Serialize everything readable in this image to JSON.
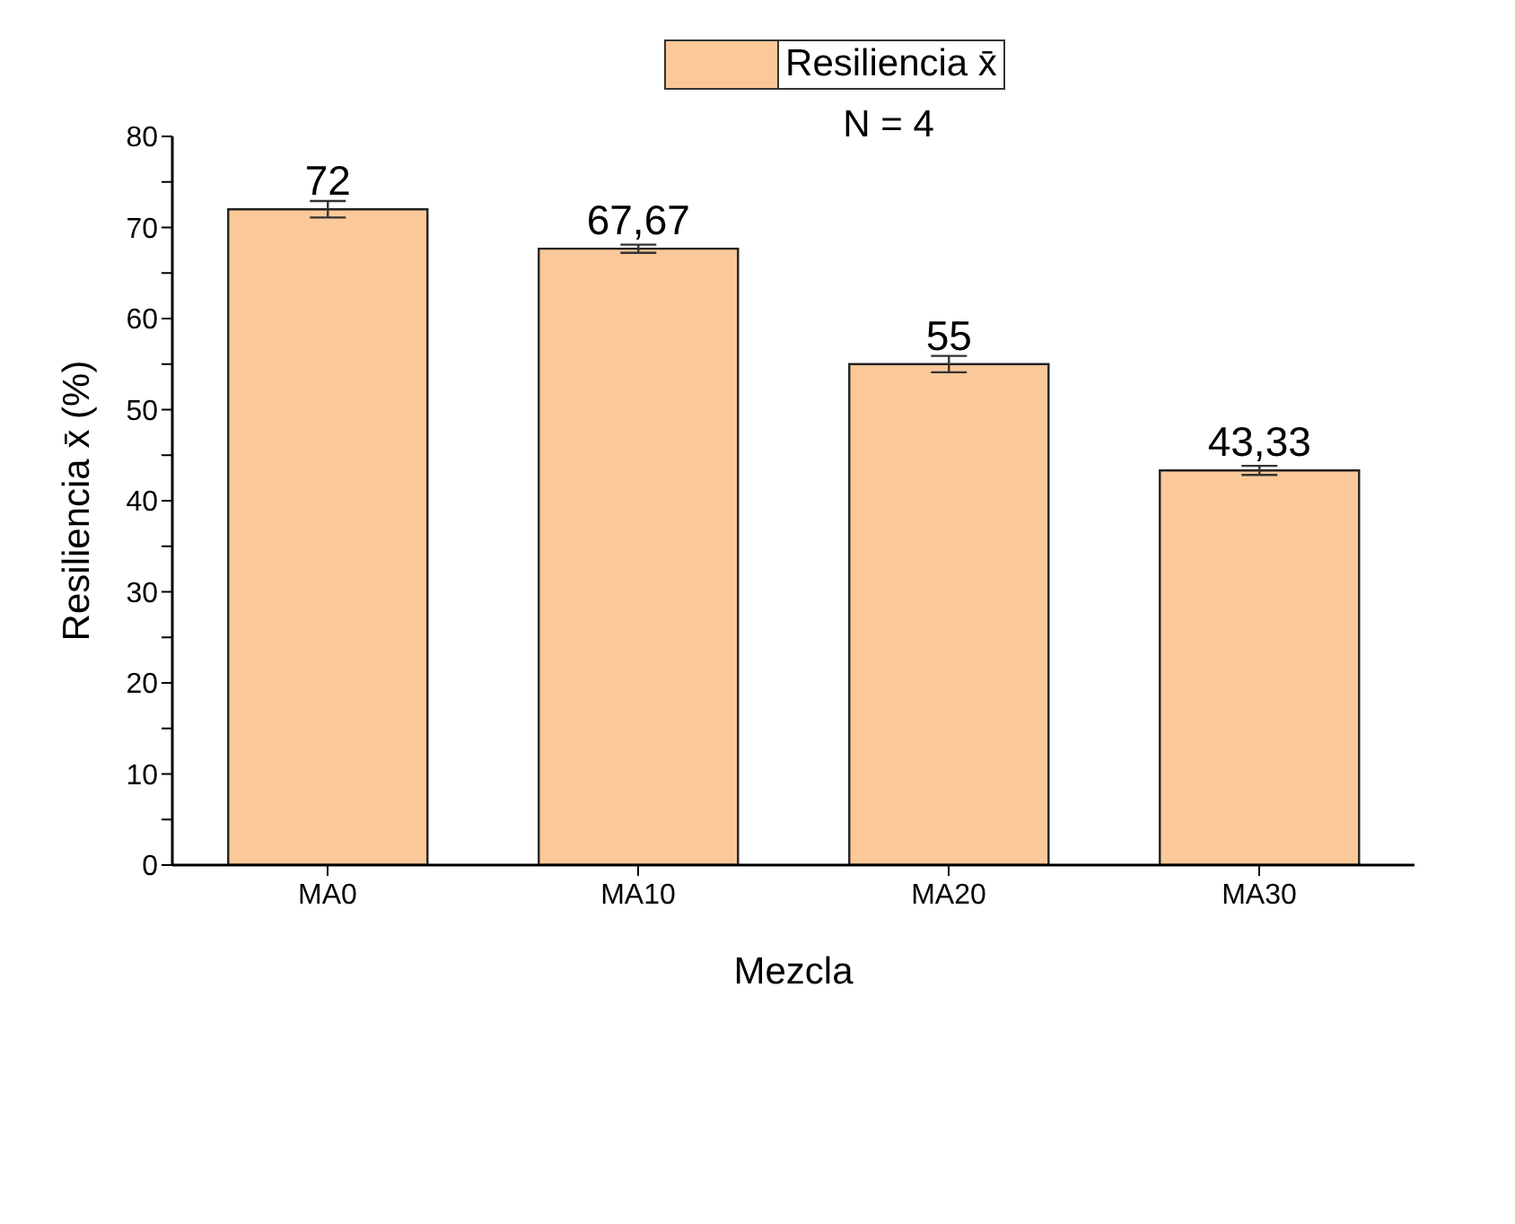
{
  "chart_data": {
    "type": "bar",
    "xlabel": "Mezcla",
    "ylabel": "Resiliencia x̄ (%)",
    "categories": [
      "MA0",
      "MA10",
      "MA20",
      "MA30"
    ],
    "series": [
      {
        "name": "Resiliencia x̄",
        "color": "#fbc999",
        "values": [
          72,
          67.67,
          55,
          43.33
        ],
        "errors": [
          0.9,
          0.45,
          0.9,
          0.5
        ],
        "value_labels": [
          "72",
          "67,67",
          "55",
          "43,33"
        ]
      }
    ],
    "ylim": [
      0,
      80
    ],
    "yticks": [
      0,
      {
        "value": 5,
        "label": null
      },
      10,
      {
        "value": 15,
        "label": null
      },
      20,
      {
        "value": 25,
        "label": null
      },
      30,
      {
        "value": 35,
        "label": null
      },
      40,
      {
        "value": 45,
        "label": null
      },
      50,
      {
        "value": 55,
        "label": null
      },
      60,
      {
        "value": 65,
        "label": null
      },
      70,
      {
        "value": 75,
        "label": null
      },
      80
    ],
    "legend": "top right",
    "grid": false,
    "annotations": [
      "N = 4"
    ]
  }
}
